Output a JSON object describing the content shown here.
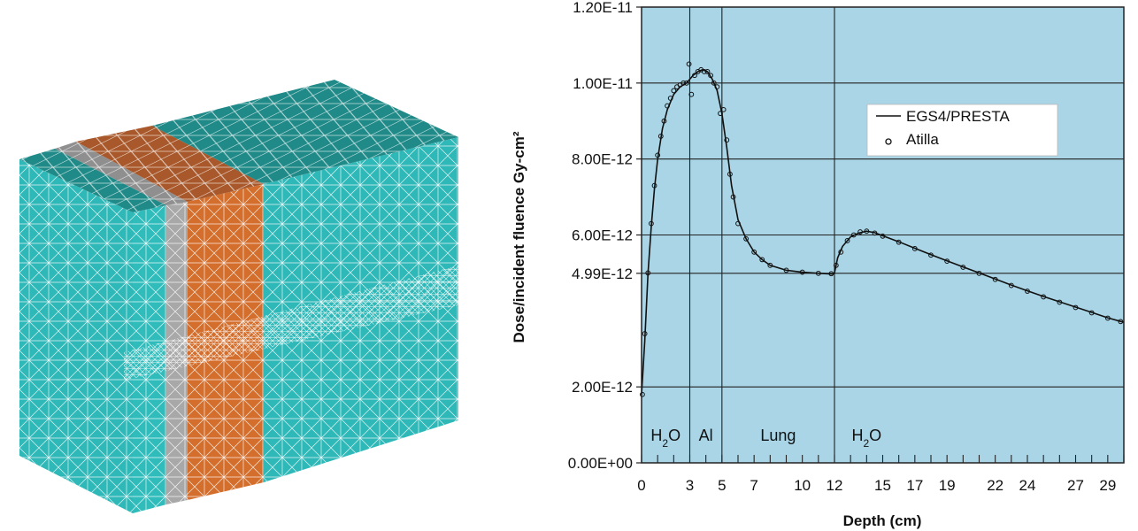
{
  "figure": {
    "mesh": {
      "materials": [
        "H2O",
        "Al",
        "Lung",
        "H2O"
      ],
      "colors": {
        "water": "#2fb8b8",
        "water_top": "#1f8a88",
        "aluminum": "#a8a8a8",
        "lung": "#d46e2c",
        "lung_top": "#a8582a",
        "mesh_lines": "#ffffff"
      }
    }
  },
  "chart_data": {
    "type": "line",
    "title": "",
    "xlabel": "Depth (cm)",
    "ylabel": "Dose/incident fluence Gy-cm²",
    "xlim": [
      0,
      30
    ],
    "ylim": [
      0,
      1.2e-11
    ],
    "x_ticks": [
      0,
      3,
      5,
      7,
      10,
      12,
      15,
      17,
      19,
      22,
      24,
      27,
      29
    ],
    "x_tick_labels": [
      "0",
      "3",
      "5",
      "7",
      "10",
      "12",
      "15",
      "17",
      "19",
      "22",
      "24",
      "27",
      "29"
    ],
    "y_ticks": [
      0,
      2e-12,
      4.99e-12,
      6e-12,
      8e-12,
      1e-11,
      1.2e-11
    ],
    "y_tick_labels": [
      "0.00E+00",
      "2.00E-12",
      "4.99E-12",
      "6.00E-12",
      "8.00E-12",
      "1.00E-11",
      "1.20E-11"
    ],
    "grid": true,
    "background": "#a9d5e6",
    "legend_position": "top-right",
    "region_boundaries": [
      3,
      5,
      12
    ],
    "regions": [
      {
        "label": "H",
        "sub": "2",
        "suffix": "O",
        "x": 1.5
      },
      {
        "label": "Al",
        "sub": "",
        "suffix": "",
        "x": 4.0
      },
      {
        "label": "Lung",
        "sub": "",
        "suffix": "",
        "x": 8.5
      },
      {
        "label": "H",
        "sub": "2",
        "suffix": "O",
        "x": 14.0
      }
    ],
    "series": [
      {
        "name": "EGS4/PRESTA",
        "style": "line",
        "color": "#111111",
        "x": [
          0,
          0.2,
          0.4,
          0.6,
          0.8,
          1.0,
          1.3,
          1.6,
          2.0,
          2.4,
          2.8,
          3.0,
          3.2,
          3.5,
          3.8,
          4.1,
          4.4,
          4.7,
          5.0,
          5.3,
          5.6,
          6.0,
          6.5,
          7.0,
          7.5,
          8.0,
          9.0,
          10.0,
          11.0,
          11.9,
          12.0,
          12.2,
          12.5,
          13.0,
          13.5,
          14.0,
          14.5,
          15.0,
          16.0,
          17.0,
          18.0,
          19.0,
          20.0,
          21.0,
          22.0,
          23.0,
          24.0,
          25.0,
          26.0,
          27.0,
          28.0,
          29.0,
          30.0
        ],
        "values": [
          1.8e-12,
          3.2e-12,
          5e-12,
          6.2e-12,
          7.2e-12,
          8e-12,
          8.8e-12,
          9.3e-12,
          9.7e-12,
          9.9e-12,
          1e-11,
          1.01e-11,
          1.02e-11,
          1.03e-11,
          1.035e-11,
          1.03e-11,
          1.01e-11,
          9.8e-12,
          9.2e-12,
          8.3e-12,
          7.3e-12,
          6.4e-12,
          5.9e-12,
          5.55e-12,
          5.35e-12,
          5.2e-12,
          5.07e-12,
          5.02e-12,
          4.99e-12,
          4.97e-12,
          5e-12,
          5.4e-12,
          5.7e-12,
          5.95e-12,
          6.05e-12,
          6.1e-12,
          6.06e-12,
          5.98e-12,
          5.82e-12,
          5.65e-12,
          5.48e-12,
          5.32e-12,
          5.16e-12,
          5e-12,
          4.84e-12,
          4.68e-12,
          4.53e-12,
          4.38e-12,
          4.24e-12,
          4.1e-12,
          3.96e-12,
          3.82e-12,
          3.7e-12
        ]
      },
      {
        "name": "Atilla",
        "style": "markers",
        "color": "#111111",
        "x": [
          0.05,
          0.2,
          0.4,
          0.6,
          0.8,
          1.0,
          1.2,
          1.4,
          1.6,
          1.8,
          2.0,
          2.2,
          2.4,
          2.6,
          2.8,
          2.95,
          3.1,
          3.3,
          3.5,
          3.7,
          3.9,
          4.1,
          4.3,
          4.5,
          4.7,
          4.9,
          5.1,
          5.3,
          5.5,
          5.7,
          6.0,
          6.5,
          7.0,
          7.5,
          8.0,
          9.0,
          10.0,
          11.0,
          11.8,
          12.1,
          12.4,
          12.8,
          13.2,
          13.6,
          14.0,
          14.5,
          15.0,
          16.0,
          17.0,
          18.0,
          19.0,
          20.0,
          21.0,
          22.0,
          23.0,
          24.0,
          25.0,
          26.0,
          27.0,
          28.0,
          29.0,
          29.8
        ],
        "values": [
          1.8e-12,
          3.4e-12,
          5e-12,
          6.3e-12,
          7.3e-12,
          8.1e-12,
          8.6e-12,
          9e-12,
          9.4e-12,
          9.6e-12,
          9.8e-12,
          9.9e-12,
          9.95e-12,
          1e-11,
          1e-11,
          1.05e-11,
          9.7e-12,
          1.02e-11,
          1.03e-11,
          1.035e-11,
          1.03e-11,
          1.03e-11,
          1.02e-11,
          1e-11,
          9.9e-12,
          9.2e-12,
          9.3e-12,
          8.5e-12,
          7.6e-12,
          7e-12,
          6.3e-12,
          5.9e-12,
          5.55e-12,
          5.35e-12,
          5.2e-12,
          5.07e-12,
          5.02e-12,
          4.99e-12,
          4.98e-12,
          5.2e-12,
          5.55e-12,
          5.85e-12,
          6e-12,
          6.08e-12,
          6.1e-12,
          6.05e-12,
          5.97e-12,
          5.81e-12,
          5.64e-12,
          5.47e-12,
          5.31e-12,
          5.15e-12,
          4.99e-12,
          4.83e-12,
          4.67e-12,
          4.52e-12,
          4.37e-12,
          4.23e-12,
          4.09e-12,
          3.95e-12,
          3.81e-12,
          3.72e-12
        ]
      }
    ]
  }
}
